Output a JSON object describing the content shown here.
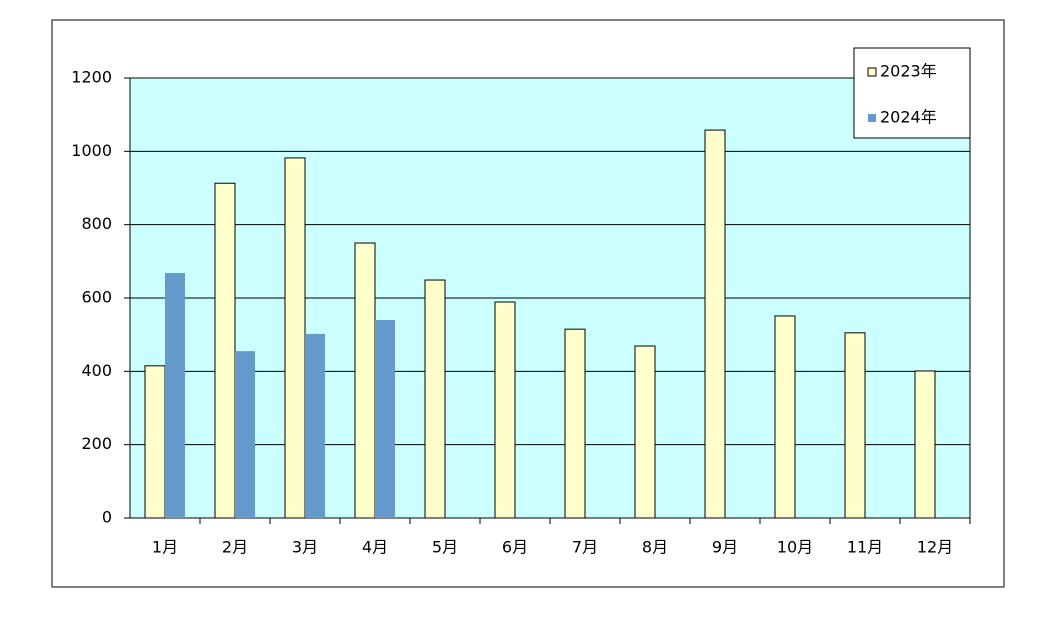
{
  "chart_data": {
    "type": "bar",
    "categories": [
      "1月",
      "2月",
      "3月",
      "4月",
      "5月",
      "6月",
      "7月",
      "8月",
      "9月",
      "10月",
      "11月",
      "12月"
    ],
    "series": [
      {
        "name": "2023年",
        "color": "#ffffcc",
        "values": [
          415,
          913,
          982,
          750,
          649,
          589,
          515,
          469,
          1058,
          551,
          505,
          401
        ]
      },
      {
        "name": "2024年",
        "color": "#6699cc",
        "values": [
          668,
          455,
          502,
          540,
          null,
          null,
          null,
          null,
          null,
          null,
          null,
          null
        ]
      }
    ],
    "ylim": [
      0,
      1200
    ],
    "yticks": [
      0,
      200,
      400,
      600,
      800,
      1000,
      1200
    ],
    "grid": true,
    "plot_background": "#ccffff",
    "legend": "top-right"
  }
}
